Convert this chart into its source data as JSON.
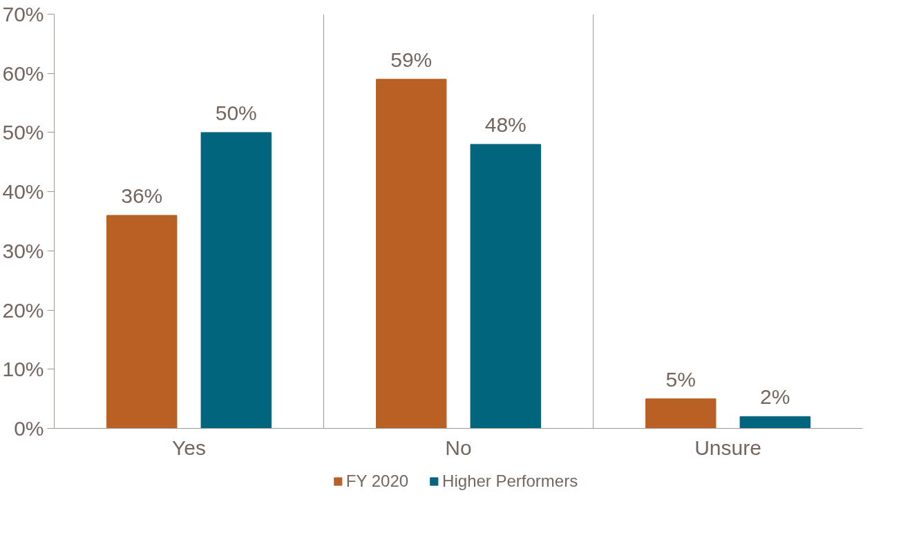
{
  "chart_data": {
    "type": "bar",
    "categories": [
      "Yes",
      "No",
      "Unsure"
    ],
    "series": [
      {
        "name": "FY 2020",
        "color": "#b96125",
        "values": [
          36,
          59,
          5
        ],
        "value_labels": [
          "36%",
          "59%",
          "5%"
        ]
      },
      {
        "name": "Higher Performers",
        "color": "#01657e",
        "values": [
          50,
          48,
          2
        ],
        "value_labels": [
          "50%",
          "48%",
          "2%"
        ]
      }
    ],
    "ylim": [
      0,
      70
    ],
    "yticks": [
      {
        "value": 0,
        "label": "0%"
      },
      {
        "value": 10,
        "label": "10%"
      },
      {
        "value": 20,
        "label": "20%"
      },
      {
        "value": 30,
        "label": "30%"
      },
      {
        "value": 40,
        "label": "40%"
      },
      {
        "value": 50,
        "label": "50%"
      },
      {
        "value": 60,
        "label": "60%"
      },
      {
        "value": 70,
        "label": "70%"
      }
    ],
    "grid": "x",
    "legend": "bottom"
  }
}
